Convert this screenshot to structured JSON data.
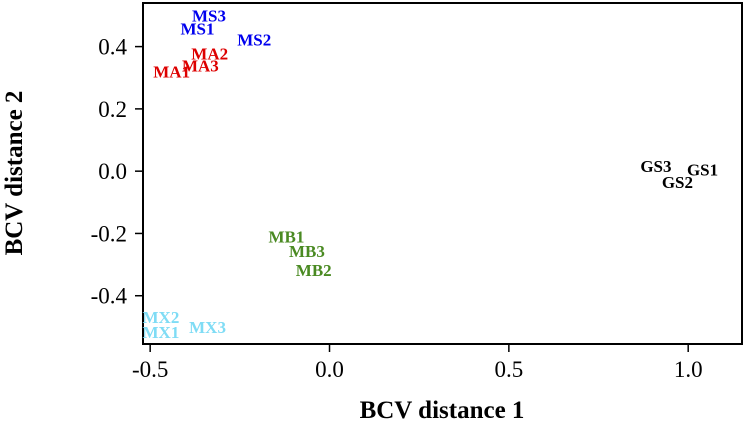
{
  "chart_data": {
    "type": "scatter",
    "title": "",
    "xlabel": "BCV distance 1",
    "ylabel": "BCV distance 2",
    "xlim": [
      -0.52,
      1.15
    ],
    "ylim": [
      -0.555,
      0.54
    ],
    "grid": false,
    "legend": "none",
    "xticks": [
      {
        "value": -0.5,
        "label": "-0.5"
      },
      {
        "value": 0.0,
        "label": "0.0"
      },
      {
        "value": 0.5,
        "label": "0.5"
      },
      {
        "value": 1.0,
        "label": "1.0"
      }
    ],
    "yticks": [
      {
        "value": 0.4,
        "label": "0.4"
      },
      {
        "value": 0.2,
        "label": "0.2"
      },
      {
        "value": 0.0,
        "label": "0.0"
      },
      {
        "value": -0.2,
        "label": "-0.2"
      },
      {
        "value": -0.4,
        "label": "-0.4"
      }
    ],
    "points": [
      {
        "label": "MS3",
        "x": -0.336,
        "y": 0.5,
        "color": "#0000ee"
      },
      {
        "label": "MS1",
        "x": -0.368,
        "y": 0.458,
        "color": "#0000ee"
      },
      {
        "label": "MS2",
        "x": -0.21,
        "y": 0.423,
        "color": "#0000ee"
      },
      {
        "label": "MA2",
        "x": -0.334,
        "y": 0.378,
        "color": "#dd0000"
      },
      {
        "label": "MA3",
        "x": -0.36,
        "y": 0.34,
        "color": "#dd0000"
      },
      {
        "label": "MA1",
        "x": -0.44,
        "y": 0.32,
        "color": "#dd0000"
      },
      {
        "label": "MB1",
        "x": -0.12,
        "y": -0.21,
        "color": "#4a8a22"
      },
      {
        "label": "MB3",
        "x": -0.063,
        "y": -0.256,
        "color": "#4a8a22"
      },
      {
        "label": "MB2",
        "x": -0.044,
        "y": -0.317,
        "color": "#4a8a22"
      },
      {
        "label": "MX2",
        "x": -0.47,
        "y": -0.468,
        "color": "#7fdcf5"
      },
      {
        "label": "MX1",
        "x": -0.47,
        "y": -0.516,
        "color": "#7fdcf5"
      },
      {
        "label": "MX3",
        "x": -0.34,
        "y": -0.5,
        "color": "#7fdcf5"
      },
      {
        "label": "GS3",
        "x": 0.91,
        "y": 0.016,
        "color": "#000000"
      },
      {
        "label": "GS1",
        "x": 1.04,
        "y": 0.006,
        "color": "#000000"
      },
      {
        "label": "GS2",
        "x": 0.97,
        "y": -0.035,
        "color": "#000000"
      }
    ]
  }
}
